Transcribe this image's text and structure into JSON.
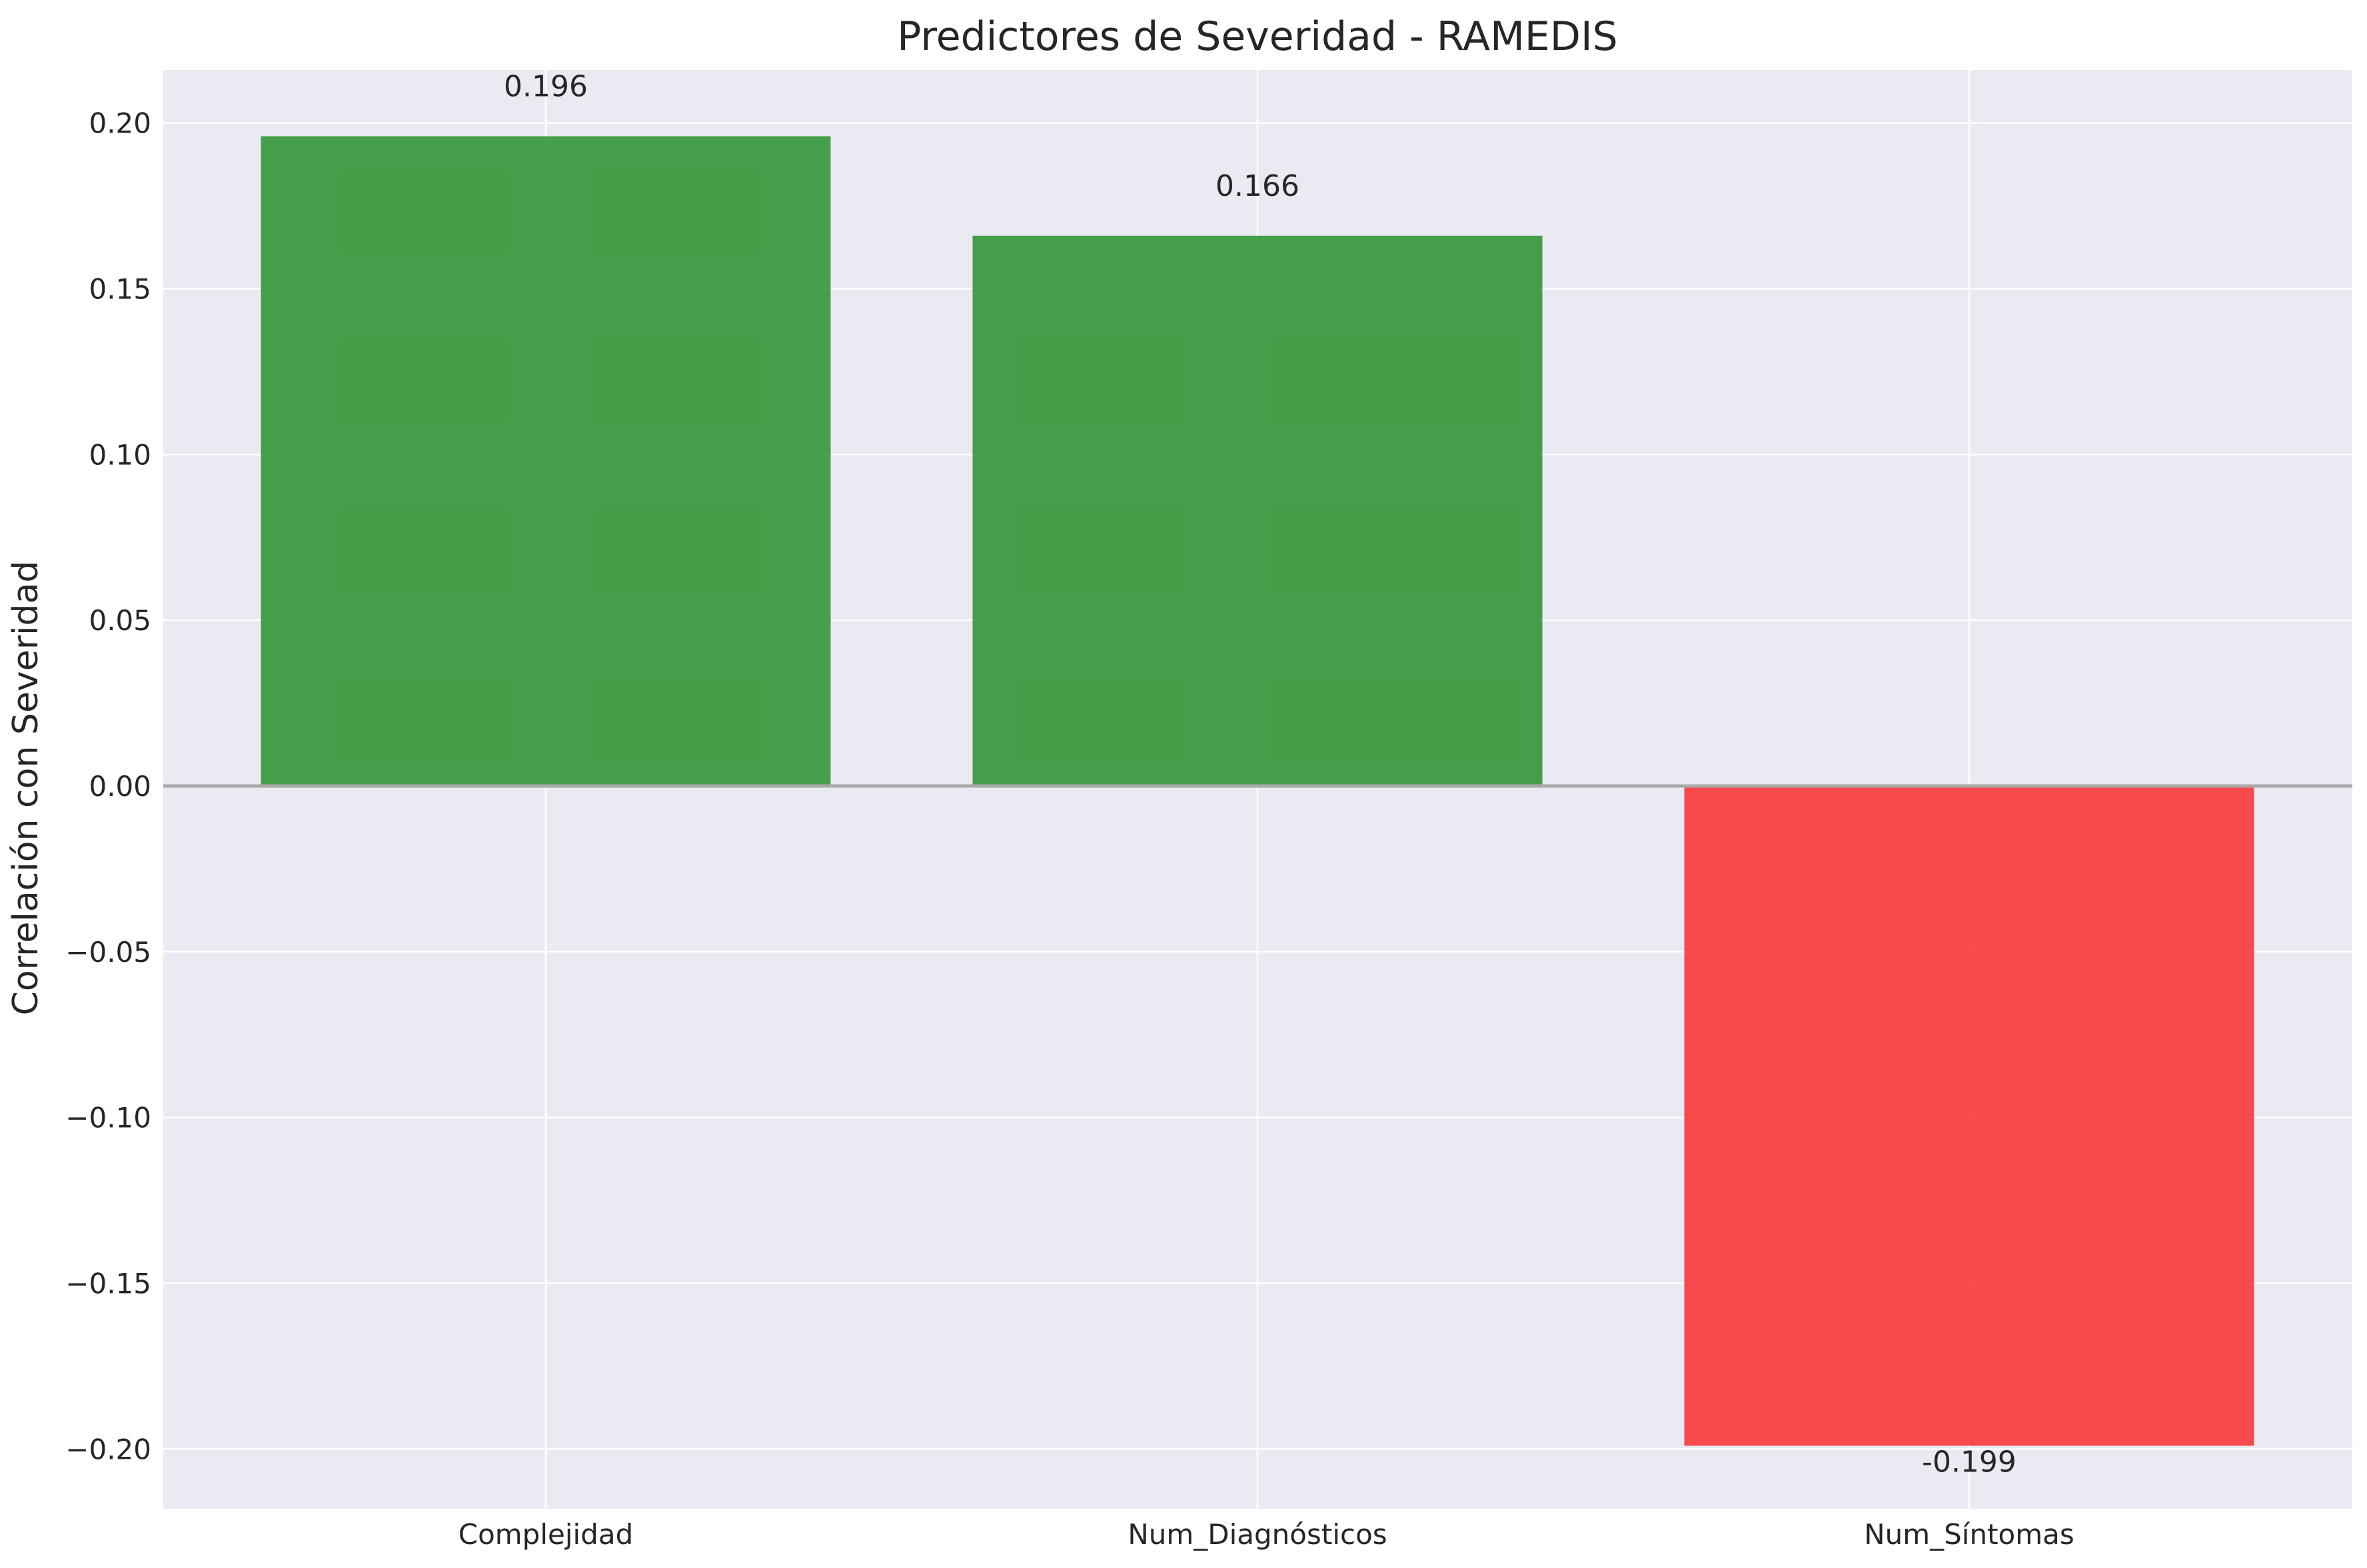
{
  "chart_data": {
    "type": "bar",
    "title": "Predictores de Severidad - RAMEDIS",
    "xlabel": "",
    "ylabel": "Correlación con Severidad",
    "categories": [
      "Complejidad",
      "Num_Diagnósticos",
      "Num_Síntomas"
    ],
    "values": [
      0.196,
      0.166,
      -0.199
    ],
    "value_labels": [
      "0.196",
      "0.166",
      "-0.199"
    ],
    "ylim": [
      -0.218,
      0.216
    ],
    "yticks": [
      -0.2,
      -0.15,
      -0.1,
      -0.05,
      0.0,
      0.05,
      0.1,
      0.15,
      0.2
    ],
    "ytick_labels": [
      "−0.20",
      "−0.15",
      "−0.10",
      "−0.05",
      "0.00",
      "0.05",
      "0.10",
      "0.15",
      "0.20"
    ],
    "grid": true,
    "legend": "none",
    "zero_line": true,
    "colors": {
      "positive": "#2e9331",
      "negative": "#f93234",
      "plot_background": "#eaeaf2",
      "grid": "#ffffff",
      "zero_line": "#a9a9a9"
    }
  }
}
